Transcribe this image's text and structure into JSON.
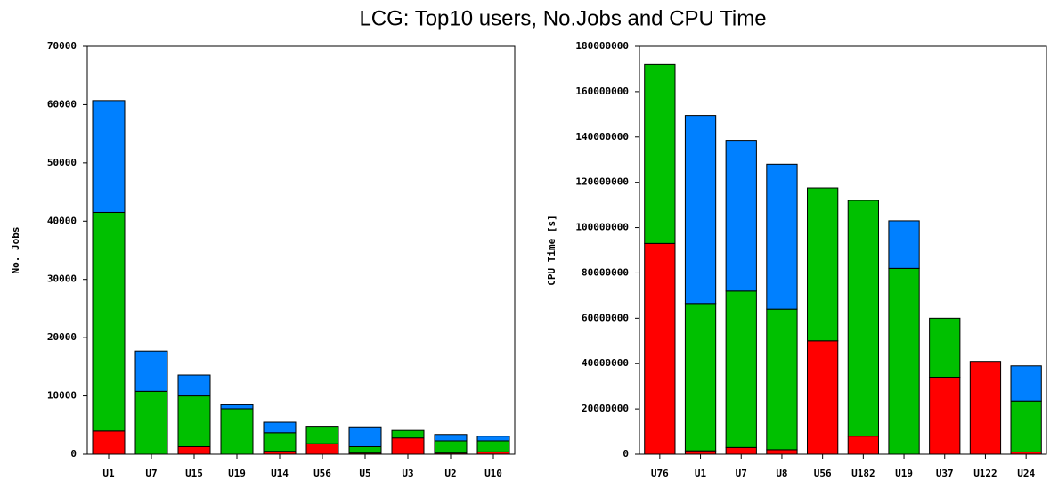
{
  "title": "LCG: Top10 users, No.Jobs and CPU Time",
  "chart_data": [
    {
      "type": "stacked-bar",
      "ylabel": "No. Jobs",
      "categories": [
        "U1",
        "U7",
        "U15",
        "U19",
        "U14",
        "U56",
        "U5",
        "U3",
        "U2",
        "U10"
      ],
      "series": [
        {
          "color": "#ff0000",
          "values": [
            4000,
            0,
            1300,
            0,
            500,
            1800,
            200,
            2800,
            200,
            400
          ]
        },
        {
          "color": "#00c000",
          "values": [
            37500,
            10800,
            8700,
            7800,
            3200,
            3000,
            1100,
            1300,
            2100,
            1900
          ]
        },
        {
          "color": "#0080ff",
          "values": [
            19200,
            6900,
            3600,
            700,
            1800,
            0,
            3400,
            0,
            1100,
            800
          ]
        }
      ],
      "ylim": [
        0,
        70000
      ],
      "yticks": [
        0,
        10000,
        20000,
        30000,
        40000,
        50000,
        60000,
        70000
      ]
    },
    {
      "type": "stacked-bar",
      "ylabel": "CPU Time [s]",
      "categories": [
        "U76",
        "U1",
        "U7",
        "U8",
        "U56",
        "U182",
        "U19",
        "U37",
        "U122",
        "U24"
      ],
      "series": [
        {
          "color": "#ff0000",
          "values": [
            93000000,
            1500000,
            3000000,
            2000000,
            50000000,
            8000000,
            0,
            34000000,
            41000000,
            1000000
          ]
        },
        {
          "color": "#00c000",
          "values": [
            79000000,
            65000000,
            69000000,
            62000000,
            67500000,
            104000000,
            82000000,
            26000000,
            0,
            22500000
          ]
        },
        {
          "color": "#0080ff",
          "values": [
            0,
            83000000,
            66500000,
            64000000,
            0,
            0,
            21000000,
            0,
            0,
            15500000
          ]
        }
      ],
      "ylim": [
        0,
        180000000
      ],
      "yticks": [
        0,
        20000000,
        40000000,
        60000000,
        80000000,
        100000000,
        120000000,
        140000000,
        160000000,
        180000000
      ]
    }
  ]
}
